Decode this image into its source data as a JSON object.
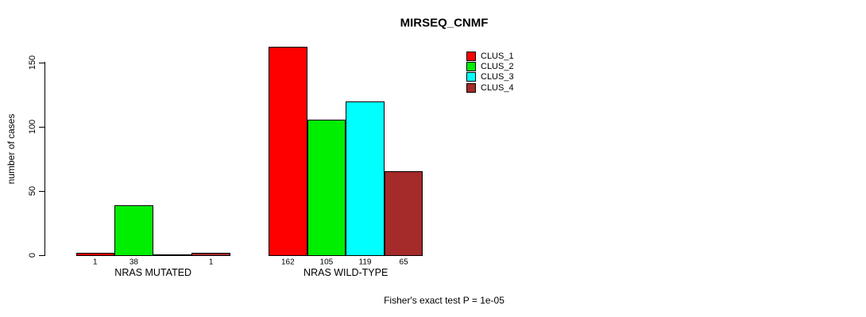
{
  "chart_data": {
    "type": "bar",
    "title": "MIRSEQ_CNMF",
    "ylabel": "number of cases",
    "ylim": [
      0,
      150
    ],
    "yticks": [
      0,
      50,
      100,
      150
    ],
    "grid": false,
    "legend_position": "top-right",
    "series": [
      {
        "name": "CLUS_1",
        "color": "#ff0000"
      },
      {
        "name": "CLUS_2",
        "color": "#00ee00"
      },
      {
        "name": "CLUS_3",
        "color": "#00ffff"
      },
      {
        "name": "CLUS_4",
        "color": "#a52a2a"
      }
    ],
    "groups": [
      {
        "label": "NRAS MUTATED",
        "values": [
          1,
          38,
          0,
          1
        ],
        "bar_labels": [
          "1",
          "38",
          "",
          "1"
        ]
      },
      {
        "label": "NRAS WILD-TYPE",
        "values": [
          162,
          105,
          119,
          65
        ],
        "bar_labels": [
          "162",
          "105",
          "119",
          "65"
        ]
      }
    ],
    "annotation": "Fisher's exact test P = 1e-05"
  }
}
